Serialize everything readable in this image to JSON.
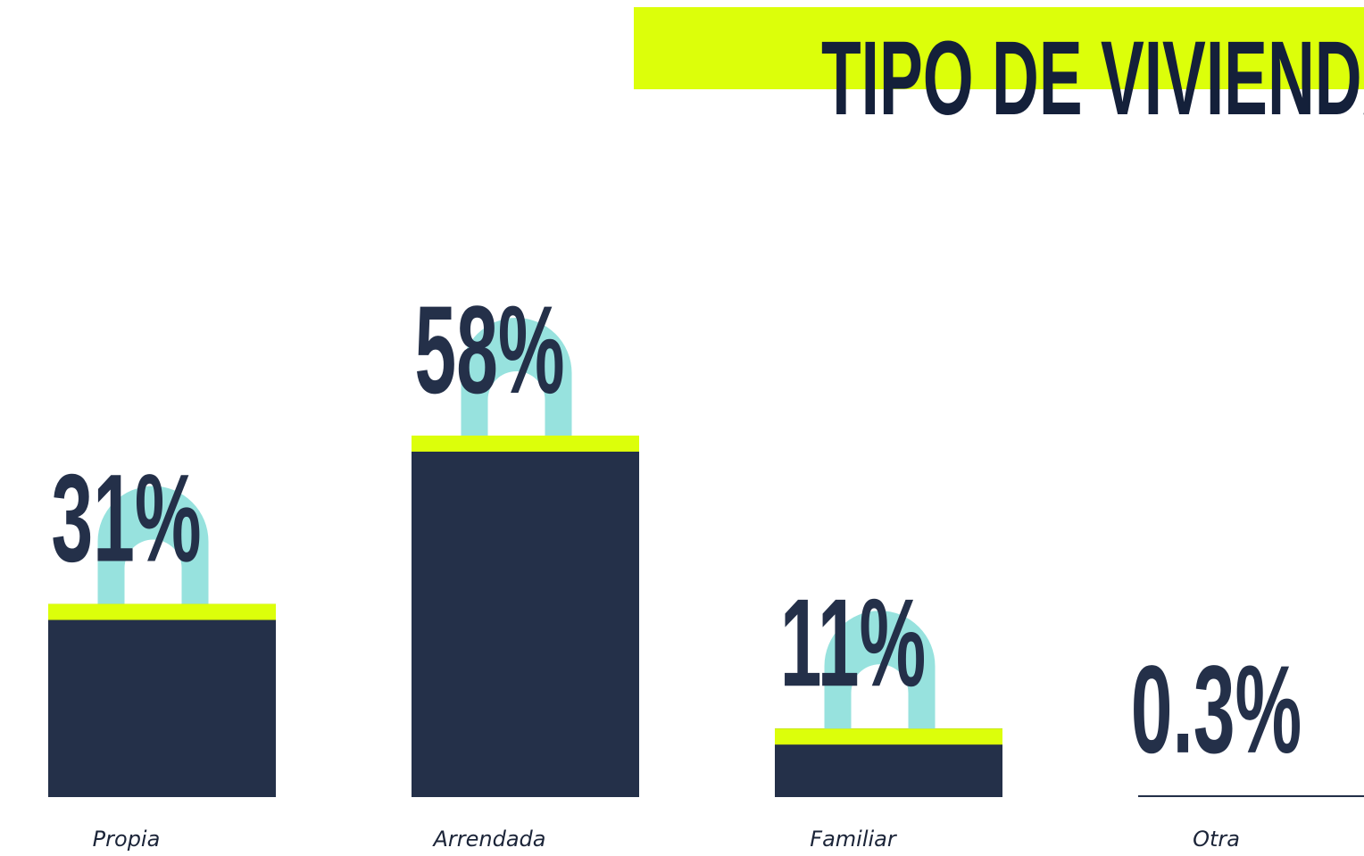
{
  "chart_data": {
    "type": "bar",
    "title": "TIPO DE VIVIENDA",
    "categories": [
      "Propia",
      "Arrendada",
      "Familiar",
      "Otra"
    ],
    "values": [
      31,
      58,
      11,
      0.3
    ],
    "value_labels": [
      "31%",
      "58%",
      "11%",
      "0.3%"
    ],
    "color": "#243049"
  }
}
